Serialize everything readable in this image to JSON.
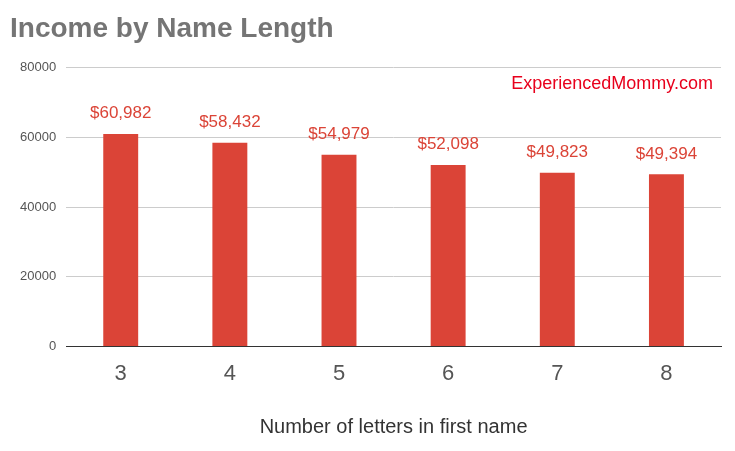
{
  "chart_data": {
    "type": "bar",
    "title": "Income by Name Length",
    "annotation": "ExperiencedMommy.com",
    "x_label": "Number of letters in first name",
    "categories": [
      "3",
      "4",
      "5",
      "6",
      "7",
      "8"
    ],
    "values": [
      60982,
      58432,
      54979,
      52098,
      49823,
      49394
    ],
    "value_labels": [
      "$60,982",
      "$58,432",
      "$54,979",
      "$52,098",
      "$49,823",
      "$49,394"
    ],
    "data_labels": true,
    "color": "#db4437",
    "ylim": [
      0,
      80000
    ],
    "yticks": [
      0,
      20000,
      40000,
      60000,
      80000
    ],
    "grid": true
  }
}
